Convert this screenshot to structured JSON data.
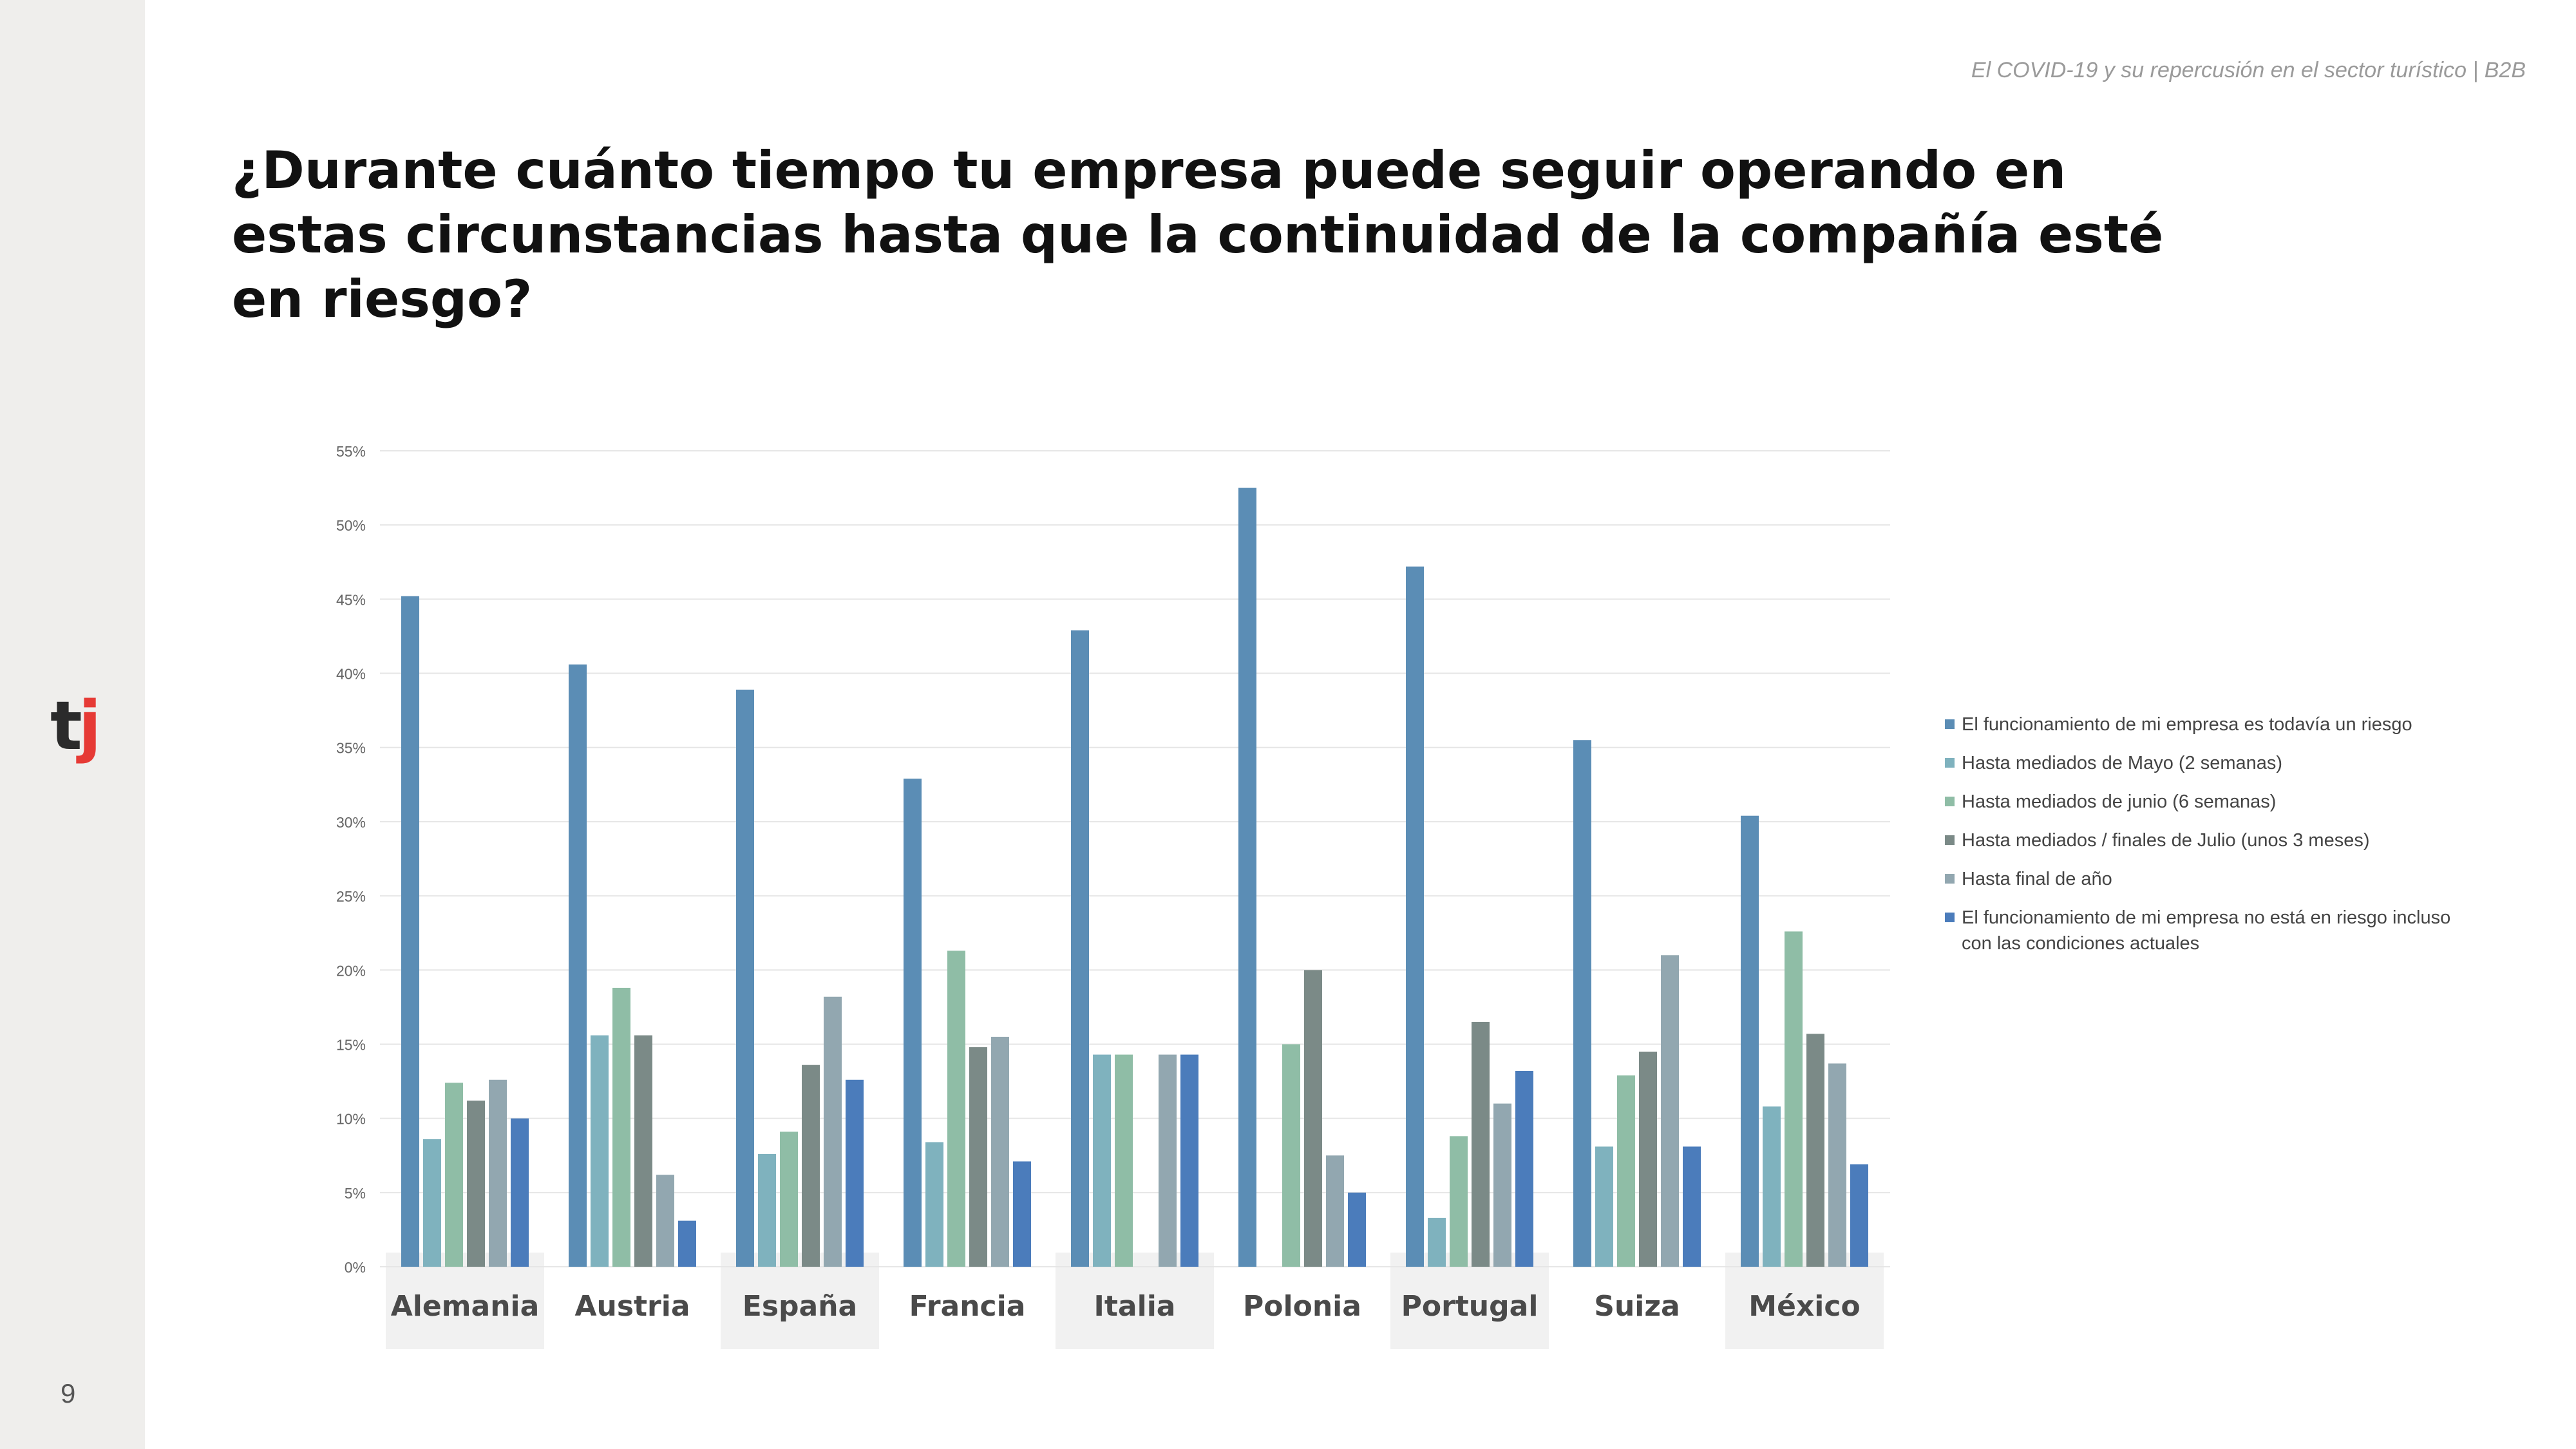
{
  "header": {
    "note": "El COVID-19 y su repercusión en el sector turístico | B2B",
    "title": "¿Durante cuánto tiempo tu empresa puede seguir operando en estas circunstancias hasta que la continuidad de la compañía esté en riesgo?"
  },
  "sidebar": {
    "page_number": "9",
    "logo_t": "t",
    "logo_j": "j"
  },
  "chart_data": {
    "type": "bar",
    "title": "¿Durante cuánto tiempo tu empresa puede seguir operando en estas circunstancias hasta que la continuidad de la compañía esté en riesgo?",
    "xlabel": "",
    "ylabel": "",
    "ylim": [
      0,
      55
    ],
    "yticks": [
      "0%",
      "5%",
      "10%",
      "15%",
      "20%",
      "25%",
      "30%",
      "35%",
      "40%",
      "45%",
      "50%",
      "55%"
    ],
    "grid": true,
    "legend_position": "right",
    "categories": [
      "Alemania",
      "Austria",
      "España",
      "Francia",
      "Italia",
      "Polonia",
      "Portugal",
      "Suiza",
      "México"
    ],
    "series": [
      {
        "name": "El funcionamiento de mi empresa es todavía un riesgo",
        "color": "#5b8db5",
        "values": [
          45.2,
          40.6,
          38.9,
          32.9,
          42.9,
          52.5,
          47.2,
          35.5,
          30.4
        ]
      },
      {
        "name": "Hasta mediados de Mayo (2 semanas)",
        "color": "#7fb2be",
        "values": [
          8.6,
          15.6,
          7.6,
          8.4,
          14.3,
          0,
          3.3,
          8.1,
          10.8
        ]
      },
      {
        "name": "Hasta mediados de junio (6 semanas)",
        "color": "#8fbda6",
        "values": [
          12.4,
          18.8,
          9.1,
          21.3,
          14.3,
          15.0,
          8.8,
          12.9,
          22.6
        ]
      },
      {
        "name": "Hasta mediados / finales de Julio (unos 3 meses)",
        "color": "#7b8a87",
        "values": [
          11.2,
          15.6,
          13.6,
          14.8,
          0,
          20.0,
          16.5,
          14.5,
          15.7
        ]
      },
      {
        "name": "Hasta final de año",
        "color": "#92a7b0",
        "values": [
          12.6,
          6.2,
          18.2,
          15.5,
          14.3,
          7.5,
          11.0,
          21.0,
          13.7
        ]
      },
      {
        "name": "El funcionamiento de mi empresa no está en riesgo incluso con las condiciones actuales",
        "color": "#4b7cbb",
        "values": [
          10.0,
          3.1,
          12.6,
          7.1,
          14.3,
          5.0,
          13.2,
          8.1,
          6.9
        ]
      }
    ],
    "category_band_shaded": [
      true,
      false,
      true,
      false,
      true,
      false,
      true,
      false,
      true
    ],
    "band_color": "#f1f1f1",
    "grid_color": "#e6e6e6"
  }
}
